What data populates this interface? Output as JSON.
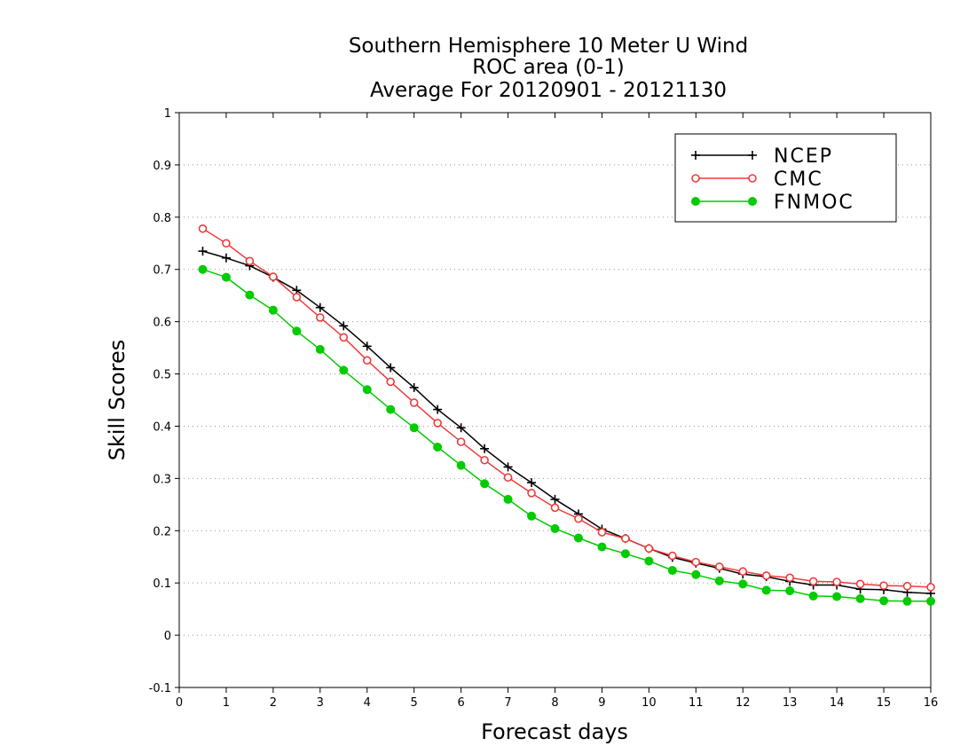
{
  "chart_data": {
    "type": "line",
    "title": [
      "Southern Hemisphere 10 Meter U Wind",
      "ROC area (0-1)",
      "Average For 20120901 - 20121130"
    ],
    "xlabel": "Forecast days",
    "ylabel": "Skill Scores",
    "xlim": [
      0,
      16
    ],
    "ylim": [
      -0.1,
      1
    ],
    "xticks": [
      "0",
      "1",
      "2",
      "3",
      "4",
      "5",
      "6",
      "7",
      "8",
      "9",
      "10",
      "11",
      "12",
      "13",
      "14",
      "15",
      "16"
    ],
    "yticks": [
      "-0.1",
      "0",
      "0.1",
      "0.2",
      "0.3",
      "0.4",
      "0.5",
      "0.6",
      "0.7",
      "0.8",
      "0.9",
      "1"
    ],
    "grid": "horizontal dotted",
    "legend_position": "top-right",
    "x": [
      0.5,
      1,
      1.5,
      2,
      2.5,
      3,
      3.5,
      4,
      4.5,
      5,
      5.5,
      6,
      6.5,
      7,
      7.5,
      8,
      8.5,
      9,
      9.5,
      10,
      10.5,
      11,
      11.5,
      12,
      12.5,
      13,
      13.5,
      14,
      14.5,
      15,
      15.5,
      16
    ],
    "series": [
      {
        "name": "NCEP",
        "color": "#000000",
        "marker": "plus",
        "values": [
          0.735,
          0.722,
          0.707,
          0.685,
          0.66,
          0.627,
          0.592,
          0.553,
          0.512,
          0.474,
          0.432,
          0.397,
          0.357,
          0.322,
          0.292,
          0.26,
          0.232,
          0.203,
          0.185,
          0.166,
          0.149,
          0.138,
          0.128,
          0.117,
          0.112,
          0.103,
          0.096,
          0.096,
          0.088,
          0.087,
          0.082,
          0.08
        ]
      },
      {
        "name": "CMC",
        "color": "#ef3b3b",
        "marker": "open-circle",
        "values": [
          0.778,
          0.75,
          0.716,
          0.686,
          0.647,
          0.608,
          0.57,
          0.526,
          0.485,
          0.445,
          0.406,
          0.37,
          0.335,
          0.302,
          0.272,
          0.244,
          0.223,
          0.197,
          0.185,
          0.166,
          0.152,
          0.14,
          0.131,
          0.122,
          0.114,
          0.11,
          0.103,
          0.102,
          0.098,
          0.095,
          0.094,
          0.092
        ]
      },
      {
        "name": "FNMOC",
        "color": "#00cc00",
        "marker": "filled-circle",
        "values": [
          0.7,
          0.685,
          0.651,
          0.622,
          0.582,
          0.547,
          0.507,
          0.47,
          0.432,
          0.397,
          0.36,
          0.325,
          0.29,
          0.26,
          0.228,
          0.204,
          0.186,
          0.169,
          0.156,
          0.142,
          0.124,
          0.116,
          0.104,
          0.098,
          0.086,
          0.085,
          0.075,
          0.074,
          0.07,
          0.066,
          0.065,
          0.065
        ]
      }
    ]
  }
}
